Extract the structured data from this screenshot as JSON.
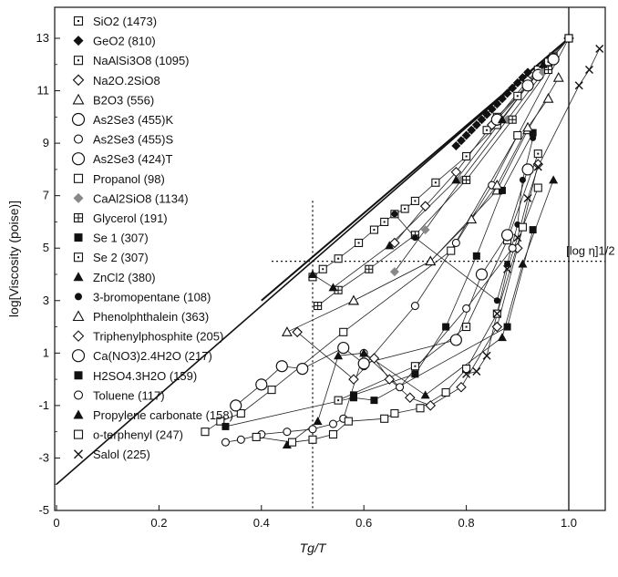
{
  "chart_data": {
    "type": "scatter",
    "xlabel": "Tg/T",
    "ylabel": "log[Viscosity (poise)]",
    "xlim": [
      0,
      1.06
    ],
    "ylim": [
      -5,
      13.8
    ],
    "x_ticks": [
      "0",
      "0.2",
      "0.4",
      "0.6",
      "0.8",
      "1.0"
    ],
    "y_ticks": [
      "-5",
      "-3",
      "-1",
      "1",
      "3",
      "5",
      "7",
      "9",
      "11",
      "13"
    ],
    "annotation": "[log η]1/2",
    "guide_lines": {
      "vertical_dotted_x": 0.5,
      "horizontal_dotted_y": 4.5,
      "vertical_solid_x": 1.0
    },
    "strong_limit_line": [
      [
        0,
        -4.0
      ],
      [
        1.0,
        13.0
      ]
    ],
    "upper_line": [
      [
        0.4,
        3.0
      ],
      [
        1.0,
        13.0
      ]
    ],
    "legend_position": "top-left",
    "series": [
      {
        "name": "SiO2 (1473)",
        "marker": "square-dot",
        "points": [
          [
            0.5,
            3.9
          ],
          [
            0.52,
            4.2
          ],
          [
            0.55,
            4.6
          ],
          [
            0.59,
            5.2
          ],
          [
            0.62,
            5.7
          ],
          [
            0.64,
            6.0
          ],
          [
            0.66,
            6.3
          ],
          [
            0.68,
            6.5
          ],
          [
            0.7,
            6.8
          ],
          [
            0.74,
            7.5
          ],
          [
            0.8,
            8.5
          ],
          [
            0.86,
            9.7
          ],
          [
            0.92,
            11.2
          ],
          [
            0.96,
            12.1
          ],
          [
            1.0,
            13.0
          ]
        ]
      },
      {
        "name": "GeO2 (810)",
        "marker": "diamond-filled",
        "points": [
          [
            0.78,
            8.9
          ],
          [
            0.79,
            9.1
          ],
          [
            0.8,
            9.3
          ],
          [
            0.81,
            9.5
          ],
          [
            0.82,
            9.7
          ],
          [
            0.83,
            9.9
          ],
          [
            0.84,
            10.1
          ],
          [
            0.85,
            10.3
          ],
          [
            0.86,
            10.5
          ],
          [
            0.87,
            10.7
          ],
          [
            0.88,
            10.9
          ],
          [
            0.89,
            11.1
          ],
          [
            0.9,
            11.3
          ],
          [
            0.91,
            11.5
          ],
          [
            0.92,
            11.7
          ]
        ]
      },
      {
        "name": "NaAlSi3O8 (1095)",
        "marker": "square-dot",
        "points": [
          [
            0.84,
            9.5
          ],
          [
            0.86,
            10.0
          ],
          [
            0.9,
            10.8
          ],
          [
            0.94,
            11.8
          ],
          [
            0.97,
            12.3
          ],
          [
            1.0,
            13.0
          ]
        ]
      },
      {
        "name": "Na2O.2SiO8",
        "marker": "diamond-open",
        "points": [
          [
            0.66,
            5.2
          ],
          [
            0.72,
            6.6
          ],
          [
            0.78,
            7.9
          ],
          [
            0.85,
            9.7
          ],
          [
            0.92,
            11.4
          ],
          [
            1.0,
            13.0
          ]
        ]
      },
      {
        "name": "B2O3 (556)",
        "marker": "triangle-open",
        "points": [
          [
            0.45,
            1.8
          ],
          [
            0.58,
            3.0
          ],
          [
            0.73,
            4.5
          ],
          [
            0.86,
            7.2
          ],
          [
            0.92,
            9.5
          ],
          [
            0.98,
            11.5
          ]
        ]
      },
      {
        "name": "As2Se3 (455)K",
        "marker": "circle-open-large",
        "points": [
          [
            0.94,
            11.6
          ],
          [
            0.97,
            12.2
          ]
        ]
      },
      {
        "name": "As2Se3 (455)S",
        "marker": "circle-open",
        "points": [
          [
            0.6,
            0.5
          ],
          [
            0.7,
            2.8
          ],
          [
            0.78,
            5.2
          ],
          [
            0.85,
            7.4
          ],
          [
            0.9,
            9.3
          ]
        ]
      },
      {
        "name": "As2Se3 (424)T",
        "marker": "circle-open-large",
        "points": [
          [
            0.86,
            9.9
          ],
          [
            0.92,
            11.2
          ]
        ]
      },
      {
        "name": "Propanol (98)",
        "marker": "square-open",
        "points": [
          [
            0.29,
            -2.0
          ],
          [
            0.32,
            -1.6
          ],
          [
            0.36,
            -1.3
          ],
          [
            0.42,
            -0.4
          ],
          [
            0.56,
            1.8
          ],
          [
            0.77,
            4.9
          ],
          [
            0.9,
            9.3
          ],
          [
            1.0,
            13.0
          ]
        ]
      },
      {
        "name": "CaAl2SiO8 (1134)",
        "marker": "diamond-gray",
        "points": [
          [
            0.66,
            4.1
          ],
          [
            0.72,
            5.7
          ],
          [
            0.79,
            7.6
          ],
          [
            0.88,
            9.9
          ],
          [
            0.95,
            11.7
          ]
        ]
      },
      {
        "name": "Glycerol (191)",
        "marker": "square-plus",
        "points": [
          [
            0.51,
            2.8
          ],
          [
            0.55,
            3.4
          ],
          [
            0.61,
            4.2
          ],
          [
            0.7,
            5.5
          ],
          [
            0.8,
            7.6
          ],
          [
            0.89,
            9.9
          ],
          [
            0.96,
            11.8
          ]
        ]
      },
      {
        "name": "Se 1 (307)",
        "marker": "square-filled",
        "points": [
          [
            0.58,
            -0.6
          ],
          [
            0.7,
            0.2
          ],
          [
            0.76,
            2.0
          ],
          [
            0.82,
            4.7
          ],
          [
            0.87,
            7.2
          ],
          [
            0.93,
            9.4
          ]
        ]
      },
      {
        "name": "Se 2 (307)",
        "marker": "square-dot",
        "points": [
          [
            0.55,
            -0.8
          ],
          [
            0.7,
            0.5
          ],
          [
            0.8,
            2.0
          ],
          [
            0.88,
            5.3
          ],
          [
            0.94,
            8.6
          ]
        ]
      },
      {
        "name": "ZnCl2 (380)",
        "marker": "triangle-filled",
        "points": [
          [
            0.5,
            4.0
          ],
          [
            0.54,
            3.5
          ],
          [
            0.65,
            5.1
          ],
          [
            0.78,
            7.6
          ],
          [
            0.87,
            9.9
          ],
          [
            0.95,
            12.0
          ]
        ]
      },
      {
        "name": "3-bromopentane (108)",
        "marker": "circle-filled",
        "points": [
          [
            0.66,
            6.3
          ],
          [
            0.7,
            5.4
          ],
          [
            0.86,
            3.0
          ],
          [
            0.88,
            4.4
          ],
          [
            0.9,
            5.9
          ],
          [
            0.91,
            7.6
          ],
          [
            0.93,
            9.2
          ]
        ]
      },
      {
        "name": "Phenolphthalein (363)",
        "marker": "triangle-open",
        "points": [
          [
            0.58,
            3.0
          ],
          [
            0.73,
            4.5
          ],
          [
            0.81,
            6.1
          ],
          [
            0.86,
            7.4
          ],
          [
            0.92,
            9.6
          ],
          [
            0.96,
            10.7
          ]
        ]
      },
      {
        "name": "Triphenylphosphite (205)",
        "marker": "diamond-open",
        "points": [
          [
            0.47,
            1.8
          ],
          [
            0.58,
            0.0
          ],
          [
            0.62,
            0.8
          ],
          [
            0.65,
            0.0
          ],
          [
            0.69,
            -0.7
          ],
          [
            0.73,
            -1.0
          ],
          [
            0.79,
            -0.3
          ],
          [
            0.86,
            2.0
          ],
          [
            0.9,
            5.0
          ],
          [
            0.94,
            8.2
          ]
        ]
      },
      {
        "name": "Ca(NO3)2.4H2O (217)",
        "marker": "circle-open-large",
        "points": [
          [
            0.35,
            -1.0
          ],
          [
            0.4,
            -0.2
          ],
          [
            0.44,
            0.5
          ],
          [
            0.48,
            0.4
          ],
          [
            0.56,
            1.2
          ],
          [
            0.6,
            0.6
          ],
          [
            0.78,
            1.5
          ],
          [
            0.83,
            4.0
          ],
          [
            0.88,
            5.5
          ],
          [
            0.92,
            8.0
          ]
        ]
      },
      {
        "name": "H2SO4.3H2O (159)",
        "marker": "square-filled",
        "points": [
          [
            0.33,
            -1.8
          ],
          [
            0.58,
            -0.7
          ],
          [
            0.62,
            -0.8
          ],
          [
            0.88,
            2.0
          ],
          [
            0.93,
            5.7
          ]
        ]
      },
      {
        "name": "Toluene (117)",
        "marker": "circle-open",
        "points": [
          [
            0.33,
            -2.4
          ],
          [
            0.36,
            -2.3
          ],
          [
            0.4,
            -2.1
          ],
          [
            0.45,
            -2.0
          ],
          [
            0.5,
            -1.9
          ],
          [
            0.54,
            -1.7
          ],
          [
            0.56,
            -1.5
          ],
          [
            0.6,
            1.0
          ],
          [
            0.67,
            -0.3
          ],
          [
            0.8,
            2.7
          ],
          [
            0.89,
            5.0
          ]
        ]
      },
      {
        "name": "Propylene carbonate (158)",
        "marker": "triangle-filled",
        "points": [
          [
            0.45,
            -2.5
          ],
          [
            0.51,
            -1.6
          ],
          [
            0.55,
            0.9
          ],
          [
            0.6,
            1.0
          ],
          [
            0.72,
            -0.6
          ],
          [
            0.87,
            1.6
          ],
          [
            0.91,
            4.4
          ],
          [
            0.97,
            7.6
          ]
        ]
      },
      {
        "name": "o-terphenyl (247)",
        "marker": "square-open",
        "points": [
          [
            0.39,
            -2.2
          ],
          [
            0.46,
            -2.4
          ],
          [
            0.5,
            -2.3
          ],
          [
            0.54,
            -2.1
          ],
          [
            0.57,
            -1.6
          ],
          [
            0.64,
            -1.5
          ],
          [
            0.66,
            -1.3
          ],
          [
            0.71,
            -1.1
          ],
          [
            0.76,
            -0.5
          ],
          [
            0.8,
            0.4
          ],
          [
            0.86,
            2.5
          ],
          [
            0.91,
            5.8
          ],
          [
            0.94,
            7.3
          ]
        ]
      },
      {
        "name": "Salol (225)",
        "marker": "cross",
        "points": [
          [
            0.8,
            0.2
          ],
          [
            0.82,
            0.3
          ],
          [
            0.84,
            0.9
          ],
          [
            0.86,
            2.5
          ],
          [
            0.88,
            4.2
          ],
          [
            0.9,
            5.4
          ],
          [
            0.92,
            6.9
          ],
          [
            0.94,
            8.1
          ],
          [
            1.02,
            11.2
          ],
          [
            1.04,
            11.8
          ],
          [
            1.06,
            12.6
          ]
        ]
      }
    ]
  }
}
